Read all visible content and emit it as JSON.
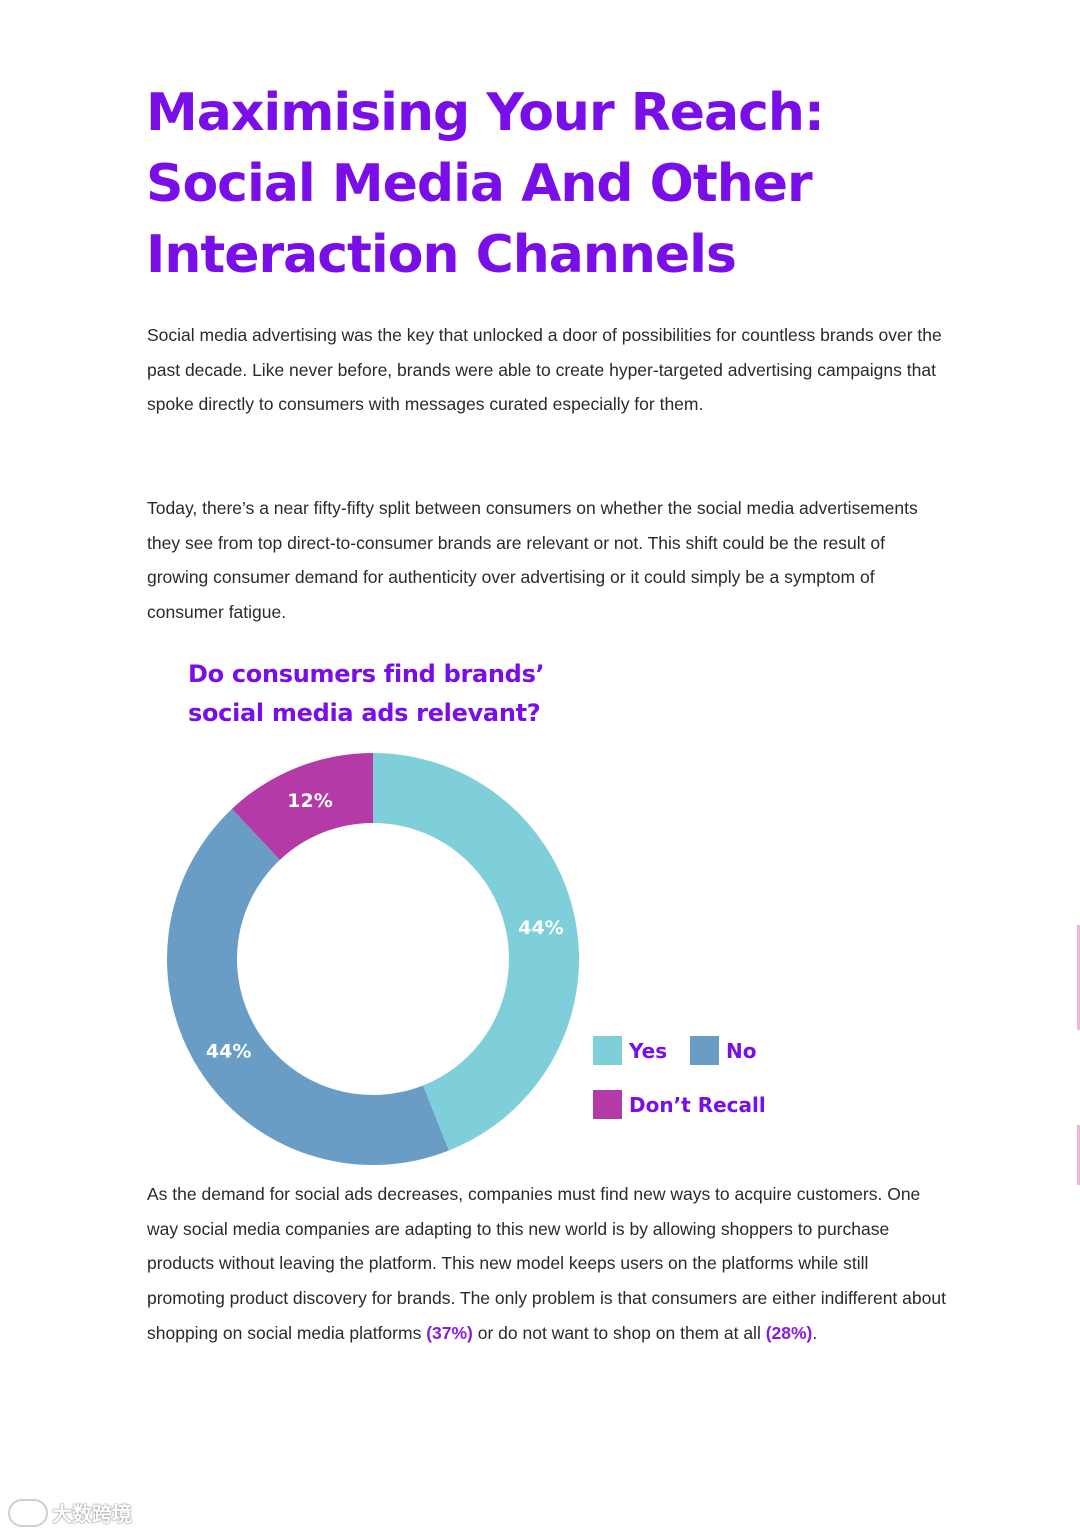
{
  "title_lines": [
    "Maximising Your Reach:",
    "Social Media And Other",
    "Interaction Channels"
  ],
  "paragraphs": {
    "intro": "Social media advertising was the key that unlocked a door of possibilities for countless brands over the past decade. Like never before, brands were able to create hyper-targeted advertising campaigns that spoke directly to consumers with messages curated especially for them.",
    "split": "Today, there’s a near fifty-fifty split between consumers on whether the social media advertisements they see from top direct-to-consumer brands are relevant or not. This shift could be the result of growing consumer demand for authenticity over advertising or it could simply be a symptom of consumer fatigue.",
    "outro": {
      "text_1": "As the demand for social ads decreases, companies must find new ways to acquire customers. One way social media companies are adapting to this new world is by allowing shoppers to purchase products without leaving the platform. This new model keeps users on the platforms while still promoting product discovery for brands. The only problem is that consumers are either indifferent about shopping on social media platforms ",
      "highlight_1": "(37%)",
      "text_2": " or do not want to shop on them at all ",
      "highlight_2": "(28%)",
      "text_3": "."
    }
  },
  "chart_data": {
    "type": "pie",
    "variant": "donut",
    "title_lines": [
      "Do consumers find brands’",
      "social media ads relevant?"
    ],
    "categories": [
      "Yes",
      "No",
      "Don’t Recall"
    ],
    "values": [
      44,
      44,
      12
    ],
    "labels": [
      "44%",
      "44%",
      "12%"
    ],
    "unit": "%",
    "colors": [
      "#7ecfda",
      "#699dc5",
      "#b33aa7"
    ],
    "legend_position": "bottom-right"
  },
  "colors": {
    "accent": "#7a0ee8",
    "highlight": "#8a1bd8",
    "body_text": "#2a2a2a"
  },
  "watermark": {
    "text": "大数跨境",
    "icon": "link-logo-icon"
  }
}
